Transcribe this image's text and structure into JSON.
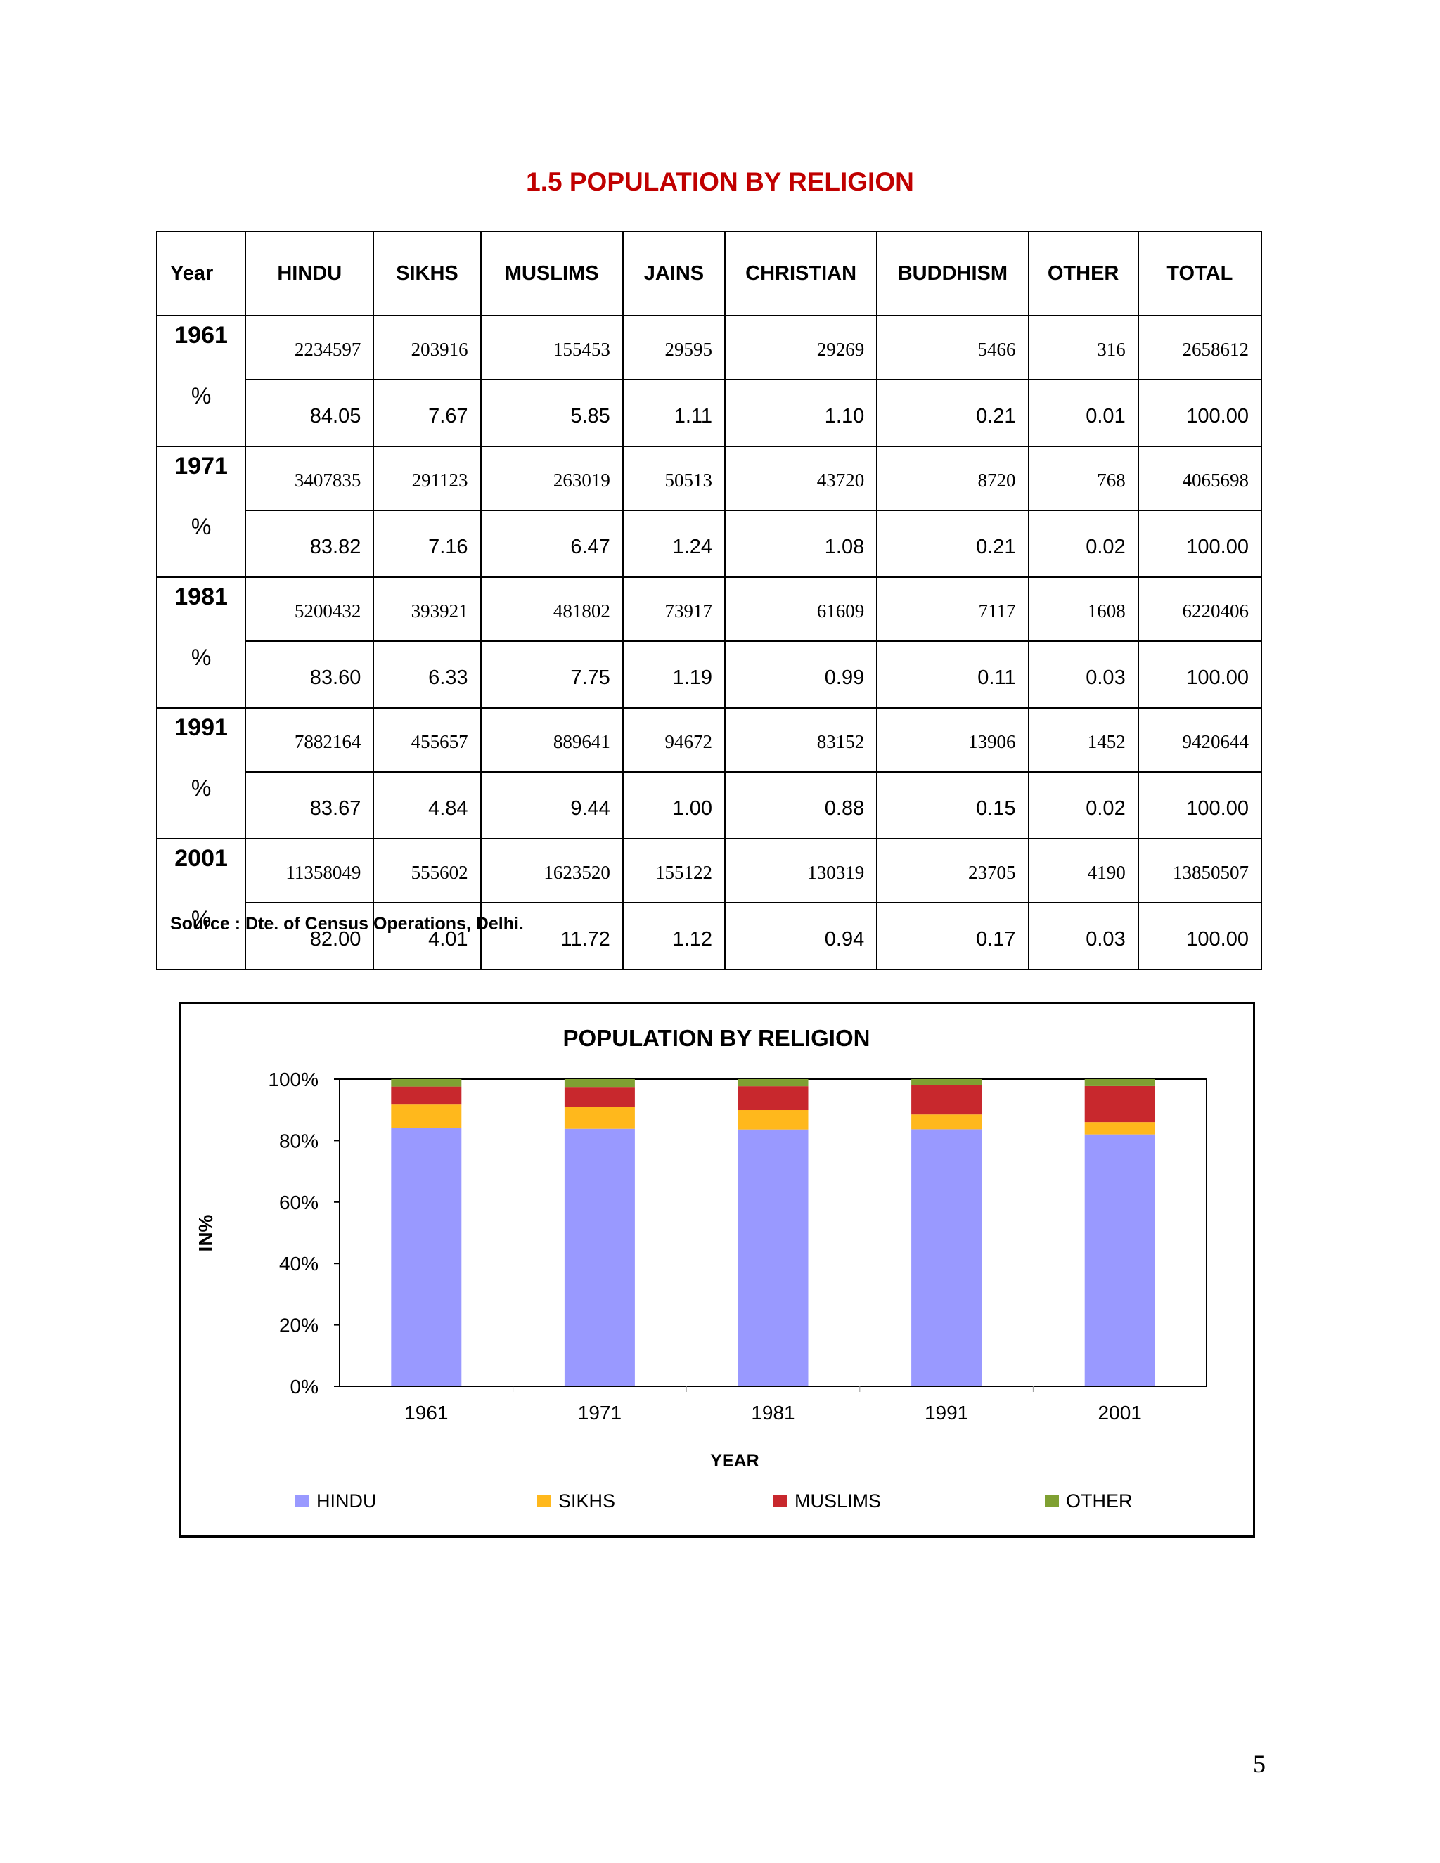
{
  "title": "1.5 POPULATION BY RELIGION",
  "table": {
    "headers": [
      "Year",
      "HINDU",
      "SIKHS",
      "MUSLIMS",
      "JAINS",
      "CHRISTIAN",
      "BUDDHISM",
      "OTHER",
      "TOTAL"
    ],
    "rows": [
      {
        "year": "1961",
        "pct_label": "%",
        "counts": [
          "2234597",
          "203916",
          "155453",
          "29595",
          "29269",
          "5466",
          "316",
          "2658612"
        ],
        "percents": [
          "84.05",
          "7.67",
          "5.85",
          "1.11",
          "1.10",
          "0.21",
          "0.01",
          "100.00"
        ]
      },
      {
        "year": "1971",
        "pct_label": "%",
        "counts": [
          "3407835",
          "291123",
          "263019",
          "50513",
          "43720",
          "8720",
          "768",
          "4065698"
        ],
        "percents": [
          "83.82",
          "7.16",
          "6.47",
          "1.24",
          "1.08",
          "0.21",
          "0.02",
          "100.00"
        ]
      },
      {
        "year": "1981",
        "pct_label": "%",
        "counts": [
          "5200432",
          "393921",
          "481802",
          "73917",
          "61609",
          "7117",
          "1608",
          "6220406"
        ],
        "percents": [
          "83.60",
          "6.33",
          "7.75",
          "1.19",
          "0.99",
          "0.11",
          "0.03",
          "100.00"
        ]
      },
      {
        "year": "1991",
        "pct_label": "%",
        "counts": [
          "7882164",
          "455657",
          "889641",
          "94672",
          "83152",
          "13906",
          "1452",
          "9420644"
        ],
        "percents": [
          "83.67",
          "4.84",
          "9.44",
          "1.00",
          "0.88",
          "0.15",
          "0.02",
          "100.00"
        ]
      },
      {
        "year": "2001",
        "pct_label": "%",
        "counts": [
          "11358049",
          "555602",
          "1623520",
          "155122",
          "130319",
          "23705",
          "4190",
          "13850507"
        ],
        "percents": [
          "82.00",
          "4.01",
          "11.72",
          "1.12",
          "0.94",
          "0.17",
          "0.03",
          "100.00"
        ]
      }
    ]
  },
  "source": "Source : Dte. of Census Operations, Delhi.",
  "chart_data": {
    "type": "bar",
    "stacked": true,
    "title": "POPULATION BY RELIGION",
    "xlabel": "YEAR",
    "ylabel": "IN%",
    "categories": [
      "1961",
      "1971",
      "1981",
      "1991",
      "2001"
    ],
    "y_ticks": [
      "0%",
      "20%",
      "40%",
      "60%",
      "80%",
      "100%"
    ],
    "ylim": [
      0,
      100
    ],
    "legend_position": "bottom",
    "series": [
      {
        "name": "HINDU",
        "color": "#9999ff",
        "values": [
          84.05,
          83.82,
          83.6,
          83.67,
          82.0
        ]
      },
      {
        "name": "SIKHS",
        "color": "#ffb81c",
        "values": [
          7.67,
          7.16,
          6.33,
          4.84,
          4.01
        ]
      },
      {
        "name": "MUSLIMS",
        "color": "#c8282d",
        "values": [
          5.85,
          6.47,
          7.75,
          9.44,
          11.72
        ]
      },
      {
        "name": "OTHER",
        "color": "#7fa032",
        "values": [
          2.43,
          2.55,
          2.32,
          2.05,
          2.26
        ]
      }
    ]
  },
  "page_number": "5"
}
